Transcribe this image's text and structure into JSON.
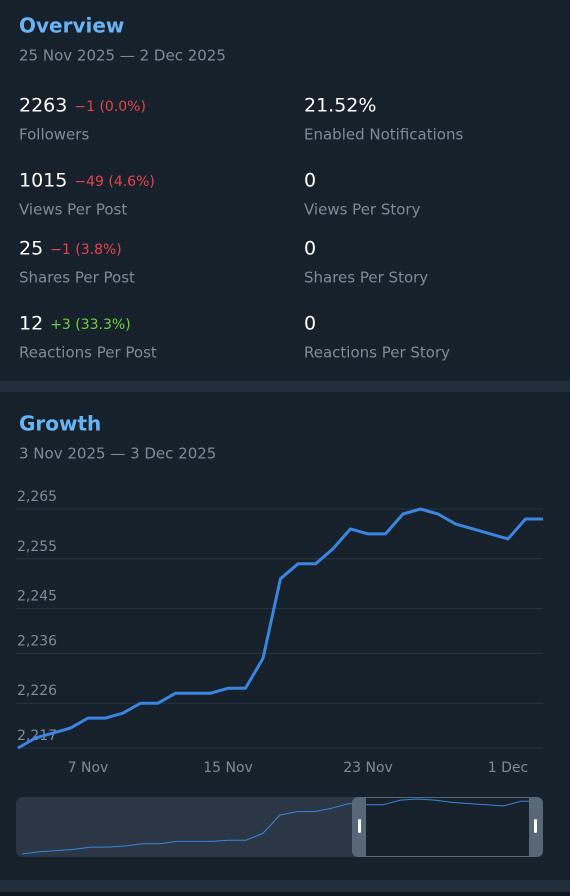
{
  "overview": {
    "title": "Overview",
    "date_range": "25 Nov 2025 — 2 Dec 2025",
    "stats": [
      {
        "value": "2263",
        "change": "−1 (0.0%)",
        "color": "#e5434f",
        "label": "Followers"
      },
      {
        "value": "21.52%",
        "label": "Enabled Notifications"
      },
      {
        "value": "1015",
        "change": "−49 (4.6%)",
        "color": "#e5434f",
        "label": "Views Per Post"
      },
      {
        "value": "0",
        "label": "Views Per Story"
      },
      {
        "value": "25",
        "change": "−1 (3.8%)",
        "color": "#e5434f",
        "label": "Shares Per Post"
      },
      {
        "value": "0",
        "label": "Shares Per Story"
      },
      {
        "value": "12",
        "change": "+3 (33.3%)",
        "color": "#6fcf3f",
        "label": "Reactions Per Post"
      },
      {
        "value": "0",
        "label": "Reactions Per Story"
      }
    ]
  },
  "chart_data": {
    "type": "line",
    "title": "Growth",
    "subtitle": "3 Nov 2025 — 3 Dec 2025",
    "categories": [
      null,
      null,
      null,
      null,
      "7 Nov",
      null,
      null,
      null,
      null,
      null,
      null,
      null,
      "15 Nov",
      null,
      null,
      null,
      null,
      null,
      null,
      null,
      "23 Nov",
      null,
      null,
      null,
      null,
      null,
      null,
      null,
      "1 Dec",
      null,
      null
    ],
    "values": [
      2217,
      2219,
      2220,
      2221,
      2223,
      2223,
      2224,
      2226,
      2226,
      2228,
      2228,
      2228,
      2229,
      2229,
      2235,
      2251,
      2254,
      2254,
      2257,
      2261,
      2260,
      2260,
      2264,
      2265,
      2264,
      2262,
      2261,
      2260,
      2259,
      2263,
      2263
    ],
    "color": "#3b85e0",
    "ylim": [
      2217,
      2265
    ],
    "yticks": [
      {
        "value": 2217,
        "label": "2,217"
      },
      {
        "value": 2226,
        "label": "2,226"
      },
      {
        "value": 2236,
        "label": "2,236"
      },
      {
        "value": 2245,
        "label": "2,245"
      },
      {
        "value": 2255,
        "label": "2,255"
      },
      {
        "value": 2265,
        "label": "2,265"
      }
    ],
    "grid": true
  }
}
